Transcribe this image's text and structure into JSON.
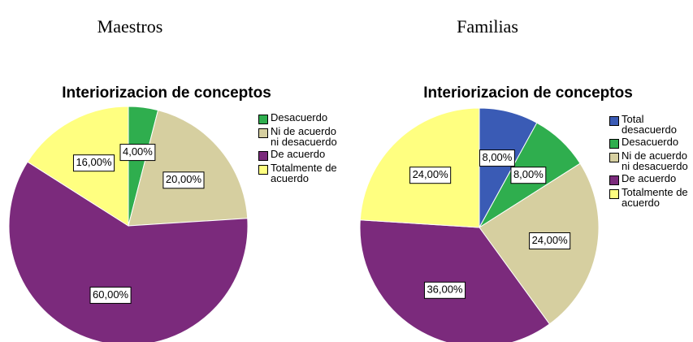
{
  "chart_data": [
    {
      "type": "pie",
      "heading": "Maestros",
      "title": "Interiorizacion de conceptos",
      "categories": [
        "Desacuerdo",
        "Ni de acuerdo ni desacuerdo",
        "De acuerdo",
        "Totalmente de acuerdo"
      ],
      "values": [
        4,
        20,
        60,
        16
      ],
      "value_labels": [
        "4,00%",
        "20,00%",
        "60,00%",
        "16,00%"
      ],
      "colors": [
        "#2fae4e",
        "#d6cfa0",
        "#7b2a7c",
        "#ffff80"
      ]
    },
    {
      "type": "pie",
      "heading": "Familias",
      "title": "Interiorizacion de conceptos",
      "categories": [
        "Total desacuerdo",
        "Desacuerdo",
        "Ni de acuerdo ni desacuerdo",
        "De acuerdo",
        "Totalmente de acuerdo"
      ],
      "values": [
        8,
        8,
        24,
        36,
        24
      ],
      "value_labels": [
        "8,00%",
        "8,00%",
        "24,00%",
        "36,00%",
        "24,00%"
      ],
      "colors": [
        "#3a5bb5",
        "#2fae4e",
        "#d6cfa0",
        "#7b2a7c",
        "#ffff80"
      ]
    }
  ]
}
